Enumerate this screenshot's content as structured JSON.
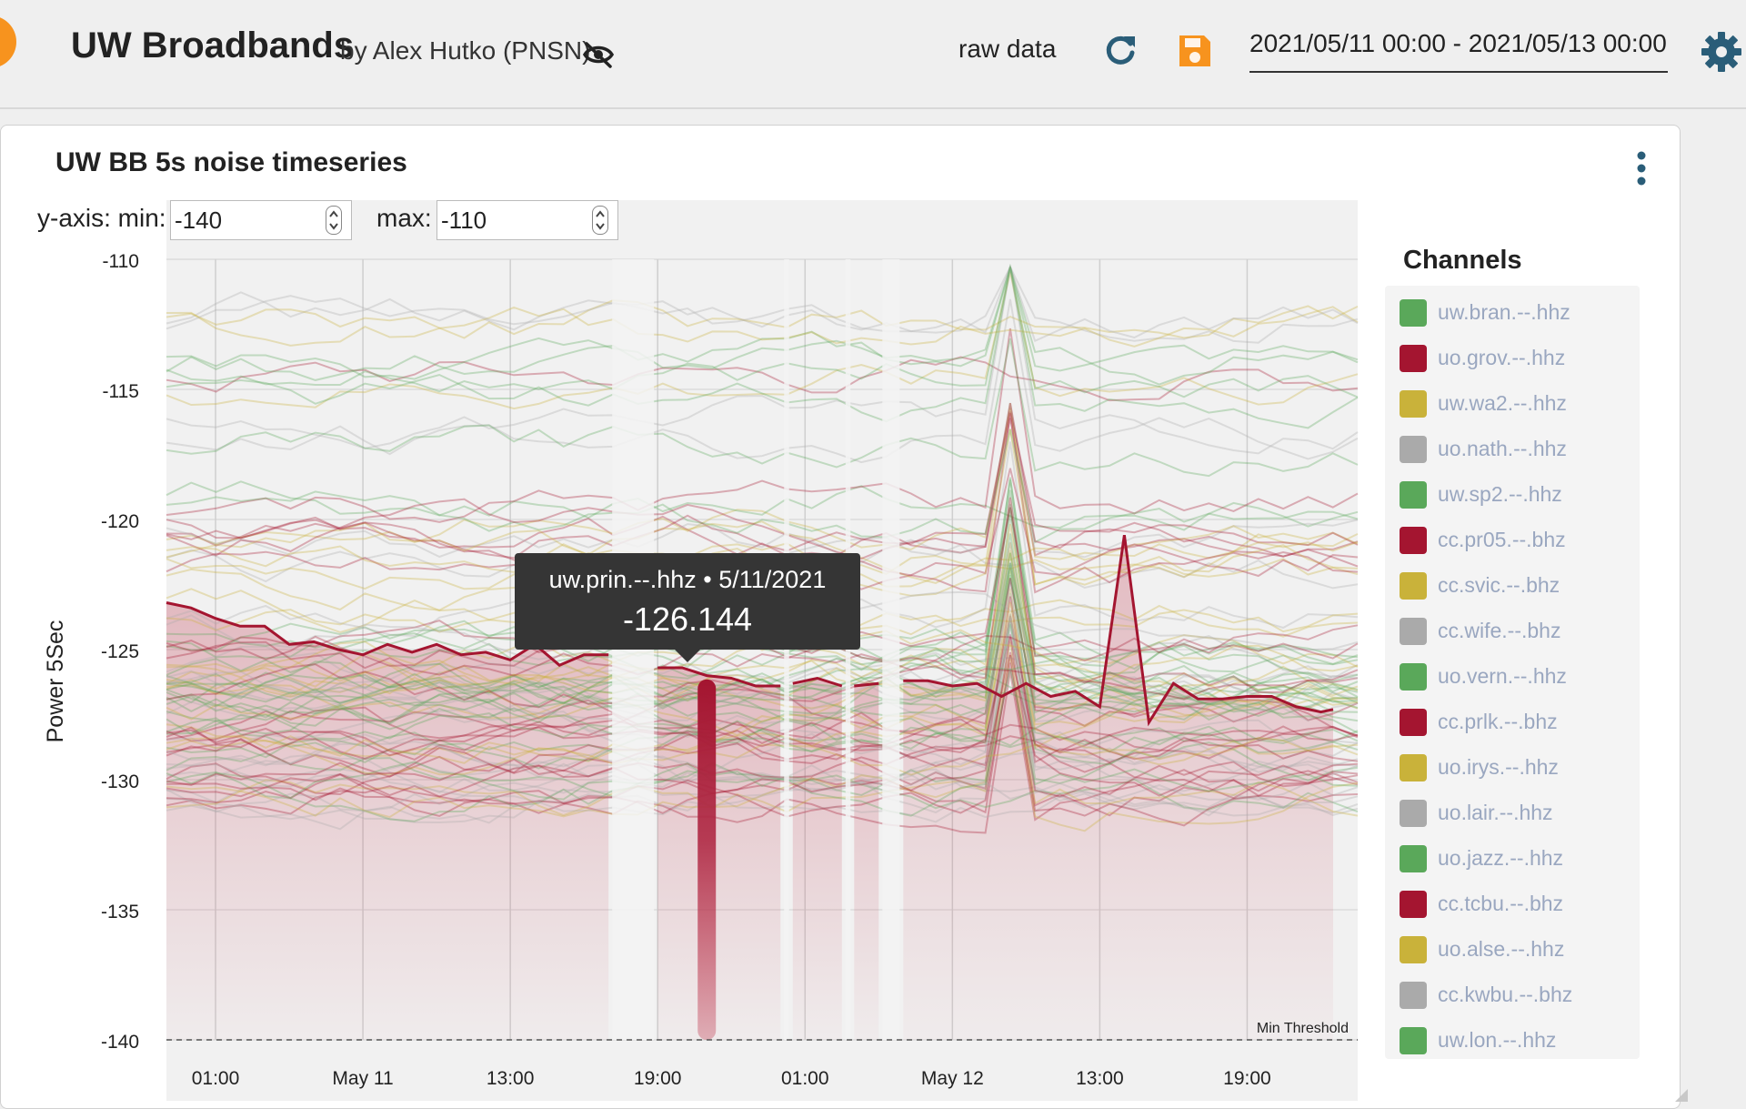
{
  "header": {
    "title": "UW Broadbands",
    "subtitle": "by Alex Hutko (PNSN)",
    "raw_data_label": "raw data",
    "date_range": "2021/05/11 00:00 - 2021/05/13 00:00",
    "colors": {
      "logo": "#f7931e",
      "save": "#f7931e",
      "refresh": "#2a5d78",
      "settings": "#2a5d78"
    },
    "icons": [
      "hidden-eye-icon",
      "refresh-icon",
      "save-icon",
      "gear-icon"
    ]
  },
  "panel": {
    "title": "UW BB 5s noise timeseries",
    "menu_icon": "vertical-dots-icon",
    "yaxis_min_label": "y-axis: min:",
    "yaxis_min_value": "-140",
    "yaxis_max_label": "max:",
    "yaxis_max_value": "-110"
  },
  "chart_data": {
    "type": "line",
    "ylabel": "Power 5Sec",
    "ylim": [
      -140,
      -110
    ],
    "yticks": [
      "-110",
      "-115",
      "-120",
      "-125",
      "-130",
      "-135",
      "-140"
    ],
    "x_range": [
      "2021-05-10T23:00",
      "2021-05-12T23:30"
    ],
    "xticks": [
      {
        "label": "01:00",
        "time": "2021-05-11T01:00"
      },
      {
        "label": "May 11",
        "time": "2021-05-11T07:00"
      },
      {
        "label": "13:00",
        "time": "2021-05-11T13:00"
      },
      {
        "label": "19:00",
        "time": "2021-05-11T19:00"
      },
      {
        "label": "01:00",
        "time": "2021-05-12T01:00"
      },
      {
        "label": "May 12",
        "time": "2021-05-12T07:00"
      },
      {
        "label": "13:00",
        "time": "2021-05-12T13:00"
      },
      {
        "label": "19:00",
        "time": "2021-05-12T19:00"
      }
    ],
    "threshold": {
      "label": "Min Threshold",
      "value": -140
    },
    "legend_title": "Channels",
    "channels": [
      {
        "name": "uw.bran.--.hhz",
        "color": "#5aa85a"
      },
      {
        "name": "uo.grov.--.hhz",
        "color": "#a41530"
      },
      {
        "name": "uw.wa2.--.hhz",
        "color": "#c9b23a"
      },
      {
        "name": "uo.nath.--.hhz",
        "color": "#aaaaaa"
      },
      {
        "name": "uw.sp2.--.hhz",
        "color": "#5aa85a"
      },
      {
        "name": "cc.pr05.--.bhz",
        "color": "#a41530"
      },
      {
        "name": "cc.svic.--.bhz",
        "color": "#c9b23a"
      },
      {
        "name": "cc.wife.--.bhz",
        "color": "#aaaaaa"
      },
      {
        "name": "uo.vern.--.hhz",
        "color": "#5aa85a"
      },
      {
        "name": "cc.prlk.--.bhz",
        "color": "#a41530"
      },
      {
        "name": "uo.irys.--.hhz",
        "color": "#c9b23a"
      },
      {
        "name": "uo.lair.--.hhz",
        "color": "#aaaaaa"
      },
      {
        "name": "uo.jazz.--.hhz",
        "color": "#5aa85a"
      },
      {
        "name": "cc.tcbu.--.bhz",
        "color": "#a41530"
      },
      {
        "name": "uo.alse.--.hhz",
        "color": "#c9b23a"
      },
      {
        "name": "cc.kwbu.--.bhz",
        "color": "#aaaaaa"
      },
      {
        "name": "uw.lon.--.hhz",
        "color": "#5aa85a"
      }
    ],
    "highlighted_series": {
      "name": "uw.prin.--.hhz",
      "color": "#a41530",
      "points": [
        [
          "2021-05-10T23:00",
          -123.2
        ],
        [
          "2021-05-11T00:00",
          -123.4
        ],
        [
          "2021-05-11T01:00",
          -123.8
        ],
        [
          "2021-05-11T02:00",
          -124.1
        ],
        [
          "2021-05-11T03:00",
          -124.1
        ],
        [
          "2021-05-11T04:00",
          -124.8
        ],
        [
          "2021-05-11T05:00",
          -124.7
        ],
        [
          "2021-05-11T06:00",
          -125.0
        ],
        [
          "2021-05-11T07:00",
          -125.2
        ],
        [
          "2021-05-11T08:00",
          -124.8
        ],
        [
          "2021-05-11T09:00",
          -125.1
        ],
        [
          "2021-05-11T10:00",
          -124.8
        ],
        [
          "2021-05-11T11:00",
          -125.2
        ],
        [
          "2021-05-11T12:00",
          -125.1
        ],
        [
          "2021-05-11T13:00",
          -125.4
        ],
        [
          "2021-05-11T14:00",
          -124.8
        ],
        [
          "2021-05-11T15:00",
          -125.6
        ],
        [
          "2021-05-11T16:00",
          -125.2
        ],
        [
          "2021-05-11T17:00",
          -125.2
        ],
        null,
        [
          "2021-05-11T19:00",
          -125.7
        ],
        [
          "2021-05-11T20:00",
          -125.7
        ],
        [
          "2021-05-11T21:00",
          -126.0
        ],
        [
          "2021-05-11T22:00",
          -126.1
        ],
        [
          "2021-05-11T23:00",
          -126.4
        ],
        [
          "2021-05-12T00:00",
          -126.4
        ],
        null,
        [
          "2021-05-12T00:30",
          -126.3
        ],
        [
          "2021-05-12T01:30",
          -126.1
        ],
        [
          "2021-05-12T02:30",
          -126.4
        ],
        null,
        [
          "2021-05-12T03:00",
          -126.4
        ],
        [
          "2021-05-12T04:00",
          -126.3
        ],
        null,
        [
          "2021-05-12T05:00",
          -126.2
        ],
        [
          "2021-05-12T06:00",
          -126.2
        ],
        [
          "2021-05-12T07:00",
          -126.4
        ],
        [
          "2021-05-12T08:00",
          -126.3
        ],
        [
          "2021-05-12T09:00",
          -126.8
        ],
        [
          "2021-05-12T10:00",
          -126.3
        ],
        [
          "2021-05-12T11:00",
          -126.8
        ],
        [
          "2021-05-12T12:00",
          -126.6
        ],
        [
          "2021-05-12T13:00",
          -127.2
        ],
        [
          "2021-05-12T14:00",
          -120.6
        ],
        [
          "2021-05-12T15:00",
          -127.8
        ],
        [
          "2021-05-12T16:00",
          -126.3
        ],
        [
          "2021-05-12T17:00",
          -126.9
        ],
        [
          "2021-05-12T18:00",
          -126.9
        ],
        [
          "2021-05-12T19:00",
          -126.8
        ],
        [
          "2021-05-12T20:00",
          -126.8
        ],
        [
          "2021-05-12T21:00",
          -127.2
        ],
        [
          "2021-05-12T22:00",
          -127.4
        ],
        [
          "2021-05-12T22:30",
          -127.3
        ]
      ]
    },
    "gaps": [
      [
        "2021-05-11T17:00",
        "2021-05-11T19:00"
      ],
      [
        "2021-05-12T00:00",
        "2021-05-12T00:30"
      ],
      [
        "2021-05-12T02:30",
        "2021-05-12T03:00"
      ],
      [
        "2021-05-12T04:00",
        "2021-05-12T05:00"
      ]
    ],
    "hover_bar_time": "2021-05-11T21:00",
    "tooltip": {
      "channel": "uw.prin.--.hhz",
      "separator": "•",
      "date": "5/11/2021",
      "value": "-126.144"
    }
  }
}
